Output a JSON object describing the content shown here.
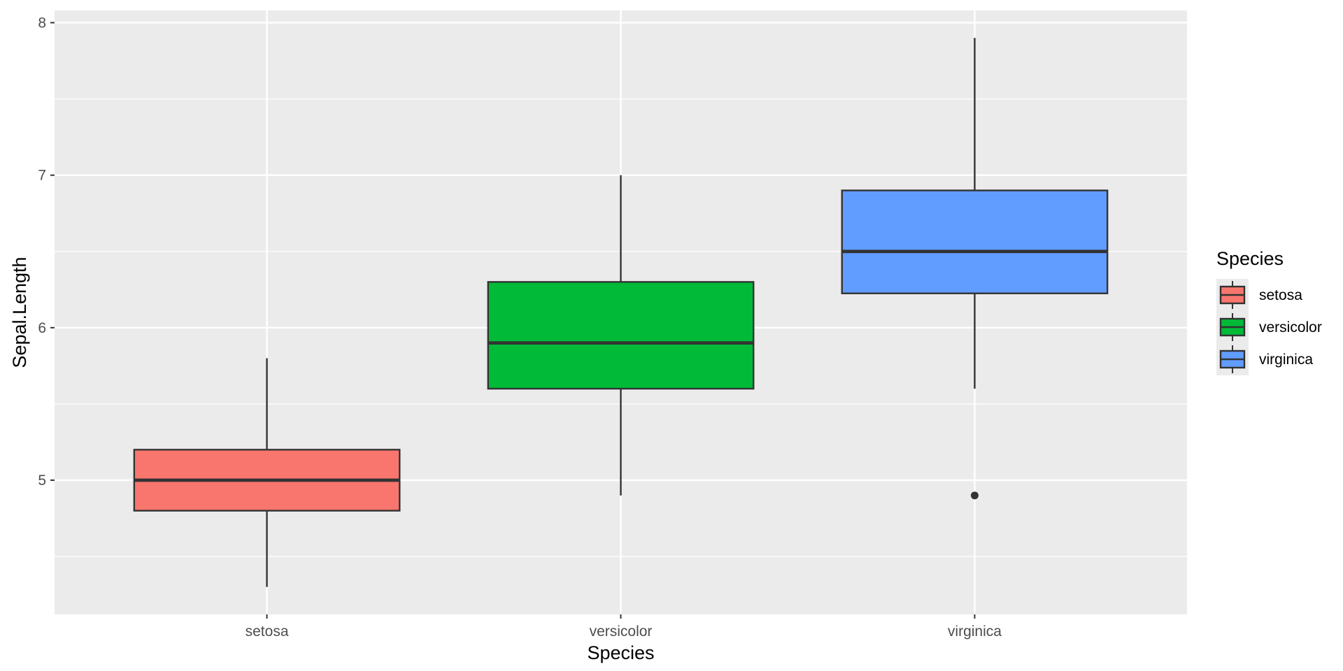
{
  "chart_data": {
    "type": "box",
    "xlabel": "Species",
    "ylabel": "Sepal.Length",
    "categories": [
      "setosa",
      "versicolor",
      "virginica"
    ],
    "ylim": [
      4.12,
      8.08
    ],
    "yticks": [
      5,
      6,
      7,
      8
    ],
    "y_minor_ticks": [
      4.5,
      5.5,
      6.5,
      7.5
    ],
    "grid": true,
    "boxes": [
      {
        "category": "setosa",
        "min": 4.3,
        "q1": 4.8,
        "median": 5.0,
        "q3": 5.2,
        "max": 5.8,
        "outliers": [],
        "color": "#F8766D"
      },
      {
        "category": "versicolor",
        "min": 4.9,
        "q1": 5.6,
        "median": 5.9,
        "q3": 6.3,
        "max": 7.0,
        "outliers": [],
        "color": "#00BA38"
      },
      {
        "category": "virginica",
        "min": 5.6,
        "q1": 6.225,
        "median": 6.5,
        "q3": 6.9,
        "max": 7.9,
        "outliers": [
          4.9
        ],
        "color": "#619CFF"
      }
    ],
    "legend": {
      "title": "Species",
      "position": "right",
      "items": [
        "setosa",
        "versicolor",
        "virginica"
      ]
    },
    "colors": {
      "panel_background": "#EBEBEB",
      "grid_line": "#FFFFFF",
      "box_outline": "#333333",
      "tick_text": "#4D4D4D"
    }
  }
}
